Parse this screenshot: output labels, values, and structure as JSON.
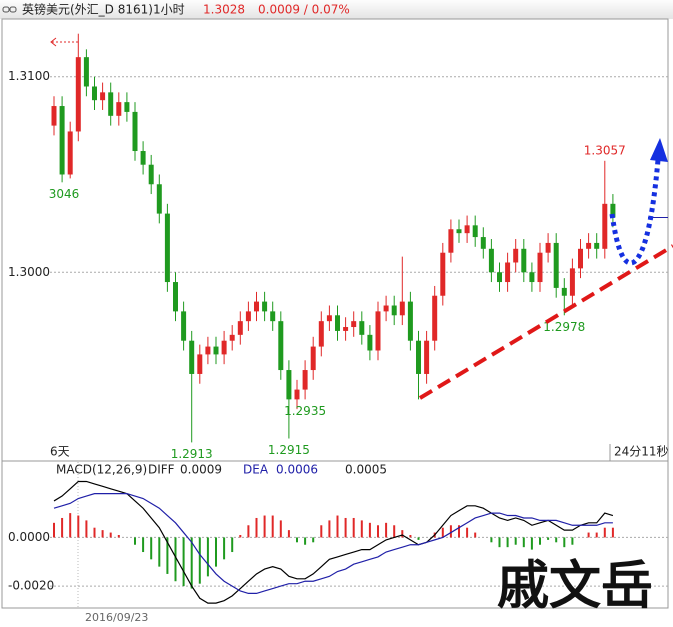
{
  "watermark": "戚文岳",
  "chart_data": [
    {
      "type": "candlestick",
      "title": "英镑美元(外汇_D 8161)1小时",
      "price": "1.3028",
      "change": "0.0009 / 0.07%",
      "ylim": [
        1.2904,
        1.3129
      ],
      "yticks": [
        {
          "value": 1.31,
          "label": "1.3100"
        },
        {
          "value": 1.3,
          "label": "1.3000"
        }
      ],
      "grid": true,
      "series": [
        {
          "up_color": "#e02828",
          "down_color": "#1f9a1f",
          "open": [
            1.3075,
            1.3085,
            1.305,
            1.3072,
            1.311,
            1.3095,
            1.3088,
            1.3092,
            1.308,
            1.3087,
            1.3082,
            1.3062,
            1.3055,
            1.3045,
            1.303,
            1.2995,
            1.298,
            1.2965,
            1.2948,
            1.2958,
            1.2962,
            1.2958,
            1.2965,
            1.2968,
            1.2975,
            1.298,
            1.2985,
            1.298,
            1.2975,
            1.295,
            1.2935,
            1.294,
            1.295,
            1.2962,
            1.2975,
            1.2978,
            1.297,
            1.2972,
            1.2975,
            1.2968,
            1.296,
            1.298,
            1.2983,
            1.2978,
            1.2985,
            1.2965,
            1.2948,
            1.2965,
            1.2988,
            1.301,
            1.3022,
            1.302,
            1.3024,
            1.3018,
            1.3012,
            1.3,
            1.2995,
            1.3005,
            1.3012,
            1.3,
            1.2995,
            1.301,
            1.3015,
            1.2992,
            1.2988,
            1.3002,
            1.3012,
            1.3015,
            1.3012,
            1.3035
          ],
          "high": [
            1.309,
            1.309,
            1.3077,
            1.3122,
            1.3114,
            1.31,
            1.3097,
            1.3097,
            1.3092,
            1.3092,
            1.3087,
            1.3067,
            1.306,
            1.305,
            1.3035,
            1.3,
            1.2985,
            1.297,
            1.2963,
            1.2967,
            1.2967,
            1.297,
            1.2973,
            1.298,
            1.2985,
            1.299,
            1.299,
            1.2985,
            1.298,
            1.2955,
            1.2945,
            1.2955,
            1.2967,
            1.298,
            1.2983,
            1.2983,
            1.2977,
            1.298,
            1.298,
            1.2973,
            1.2985,
            1.2988,
            1.2988,
            1.3008,
            1.299,
            1.297,
            1.297,
            1.2993,
            1.3015,
            1.3027,
            1.3027,
            1.3029,
            1.3029,
            1.3023,
            1.3017,
            1.3005,
            1.301,
            1.3017,
            1.3017,
            1.3005,
            1.3015,
            1.302,
            1.302,
            1.2997,
            1.3007,
            1.3017,
            1.302,
            1.302,
            1.3057,
            1.304
          ],
          "low": [
            1.307,
            1.3046,
            1.3048,
            1.3067,
            1.309,
            1.3083,
            1.3083,
            1.3075,
            1.3075,
            1.3077,
            1.3057,
            1.305,
            1.304,
            1.3025,
            1.299,
            1.2975,
            1.296,
            1.2913,
            1.2943,
            1.2953,
            1.2953,
            1.2953,
            1.296,
            1.2963,
            1.297,
            1.2975,
            1.2975,
            1.297,
            1.2945,
            1.2915,
            1.293,
            1.2935,
            1.2945,
            1.2957,
            1.297,
            1.2965,
            1.2965,
            1.2967,
            1.2963,
            1.2955,
            1.2955,
            1.2975,
            1.2973,
            1.2973,
            1.296,
            1.2935,
            1.2943,
            1.296,
            1.2983,
            1.3005,
            1.3015,
            1.3015,
            1.3013,
            1.3007,
            1.2995,
            1.299,
            1.299,
            1.3,
            1.2995,
            1.299,
            1.299,
            1.3005,
            1.2987,
            1.2978,
            1.2983,
            1.2997,
            1.3007,
            1.3007,
            1.3007,
            1.3023
          ],
          "close": [
            1.3085,
            1.305,
            1.3072,
            1.311,
            1.3095,
            1.3088,
            1.3092,
            1.308,
            1.3087,
            1.3082,
            1.3062,
            1.3055,
            1.3045,
            1.303,
            1.2995,
            1.298,
            1.2965,
            1.2948,
            1.2958,
            1.2962,
            1.2958,
            1.2965,
            1.2968,
            1.2975,
            1.298,
            1.2985,
            1.298,
            1.2975,
            1.295,
            1.2935,
            1.294,
            1.295,
            1.2962,
            1.2975,
            1.2978,
            1.297,
            1.2972,
            1.2975,
            1.2968,
            1.296,
            1.298,
            1.2983,
            1.2978,
            1.2985,
            1.2965,
            1.2948,
            1.2965,
            1.2988,
            1.301,
            1.3022,
            1.302,
            1.3024,
            1.3018,
            1.3012,
            1.3,
            1.2995,
            1.3005,
            1.3012,
            1.3,
            1.2995,
            1.301,
            1.3015,
            1.2992,
            1.2988,
            1.3002,
            1.3012,
            1.3015,
            1.3012,
            1.3035,
            1.3028
          ]
        }
      ],
      "annotations": [
        {
          "label": "3046",
          "value": 1.3046
        },
        {
          "label": "1.2913",
          "value": 1.2913
        },
        {
          "label": "1.2915",
          "value": 1.2915
        },
        {
          "label": "1.2935",
          "value": 1.2935
        },
        {
          "label": "1.2978",
          "value": 1.2978
        },
        {
          "label": "1.3057",
          "value": 1.3057
        }
      ],
      "period_label": "6天",
      "timer_label": "24分11秒"
    },
    {
      "type": "macd",
      "title": "MACD(12,26,9)",
      "macd_value": "0.0005",
      "date_label": "2016/09/23",
      "ylim": [
        -0.0029,
        0.0031
      ],
      "yticks": [
        {
          "value": 0,
          "label": "0.0000"
        },
        {
          "value": -0.002,
          "label": "-0.0020"
        }
      ],
      "grid": true,
      "series": [
        {
          "name": "DIFF",
          "current": "0.0009",
          "color": "#000000",
          "values": [
            0.0015,
            0.0017,
            0.002,
            0.0023,
            0.0023,
            0.0022,
            0.0021,
            0.002,
            0.0019,
            0.0018,
            0.0015,
            0.0012,
            0.0008,
            0.0004,
            -0.0002,
            -0.0008,
            -0.0014,
            -0.002,
            -0.0025,
            -0.0027,
            -0.0027,
            -0.0026,
            -0.0024,
            -0.0021,
            -0.0018,
            -0.0015,
            -0.0013,
            -0.0012,
            -0.0013,
            -0.0016,
            -0.0017,
            -0.0017,
            -0.0015,
            -0.0012,
            -0.0009,
            -0.0008,
            -0.0007,
            -0.0006,
            -0.0005,
            -0.0005,
            -0.0003,
            -0.0001,
            0.0,
            0.0001,
            -0.0001,
            -0.0003,
            -0.0002,
            0.0001,
            0.0005,
            0.0009,
            0.0011,
            0.0013,
            0.0013,
            0.0012,
            0.001,
            0.0008,
            0.0007,
            0.0008,
            0.0007,
            0.0005,
            0.0006,
            0.0007,
            0.0005,
            0.0003,
            0.0003,
            0.0005,
            0.0006,
            0.0006,
            0.001,
            0.0009
          ]
        },
        {
          "name": "DEA",
          "current": "0.0006",
          "color": "#2020a8",
          "values": [
            0.0012,
            0.0013,
            0.0014,
            0.0016,
            0.0017,
            0.0018,
            0.0018,
            0.0018,
            0.0018,
            0.0018,
            0.0017,
            0.0016,
            0.0014,
            0.0012,
            0.0009,
            0.0006,
            0.0002,
            -0.0002,
            -0.0007,
            -0.0011,
            -0.0015,
            -0.0018,
            -0.002,
            -0.0022,
            -0.0023,
            -0.0023,
            -0.0022,
            -0.0021,
            -0.002,
            -0.0019,
            -0.0019,
            -0.0018,
            -0.0018,
            -0.0017,
            -0.0016,
            -0.0014,
            -0.0013,
            -0.0011,
            -0.001,
            -0.0009,
            -0.0008,
            -0.0006,
            -0.0005,
            -0.0004,
            -0.0003,
            -0.0003,
            -0.0002,
            -0.0001,
            0.0,
            0.0002,
            0.0004,
            0.0006,
            0.0008,
            0.0009,
            0.001,
            0.001,
            0.0009,
            0.0009,
            0.0008,
            0.0008,
            0.0007,
            0.0007,
            0.0007,
            0.0006,
            0.0005,
            0.0005,
            0.0005,
            0.0005,
            0.0006,
            0.0006
          ]
        },
        {
          "up_color": "#e02828",
          "down_color": "#1f9a1f",
          "values": [
            0.0006,
            0.0008,
            0.001,
            0.0009,
            0.0007,
            0.0004,
            0.0003,
            0.0002,
            0.0001,
            0.0,
            -0.0003,
            -0.0006,
            -0.0009,
            -0.0012,
            -0.0015,
            -0.0018,
            -0.002,
            -0.0021,
            -0.0019,
            -0.0016,
            -0.0012,
            -0.0009,
            -0.0006,
            0.0001,
            0.0005,
            0.0008,
            0.0009,
            0.0009,
            0.0007,
            0.0003,
            -0.0002,
            -0.0003,
            -0.0002,
            0.0005,
            0.0007,
            0.0009,
            0.0008,
            0.0008,
            0.0007,
            0.0006,
            0.0005,
            0.0006,
            0.0005,
            0.0003,
            0.0001,
            -0.0001,
            0.0,
            0.0002,
            0.0004,
            0.0005,
            0.0005,
            0.0004,
            0.0002,
            0.0,
            -0.0002,
            -0.0004,
            -0.0004,
            -0.0003,
            -0.0004,
            -0.0005,
            -0.0003,
            -0.0001,
            -0.0002,
            -0.0004,
            -0.0003,
            0.0,
            0.0002,
            0.0002,
            0.0004,
            0.0004
          ]
        }
      ]
    }
  ]
}
